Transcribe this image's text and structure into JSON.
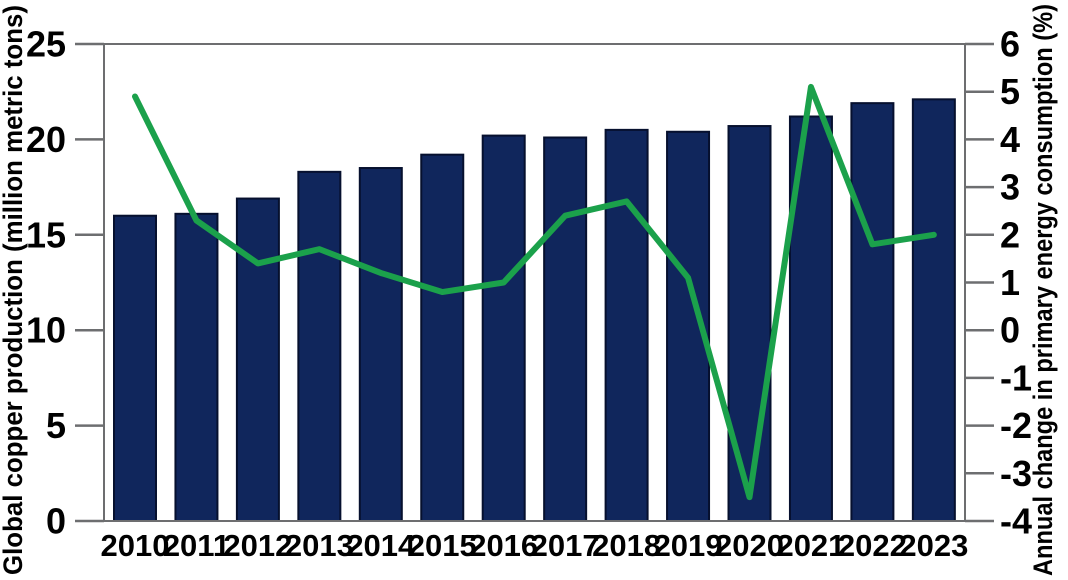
{
  "chart_data": {
    "type": "bar",
    "subtype": "combo-bar-line-dual-axis",
    "title": "",
    "categories": [
      "2010",
      "2011",
      "2012",
      "2013",
      "2014",
      "2015",
      "2016",
      "2017",
      "2018",
      "2019",
      "2020",
      "2021",
      "2022",
      "2023"
    ],
    "series": [
      {
        "name": "Global copper production",
        "type": "bar",
        "axis": "left",
        "color": "#10265c",
        "outline_color": "#06102e",
        "values": [
          16.0,
          16.1,
          16.9,
          18.3,
          18.5,
          19.2,
          20.2,
          20.1,
          20.5,
          20.4,
          20.7,
          21.2,
          21.9,
          22.1
        ]
      },
      {
        "name": "Annual change in primary energy consumption",
        "type": "line",
        "axis": "right",
        "color": "#1ba14b",
        "values": [
          4.9,
          2.3,
          1.4,
          1.7,
          1.2,
          0.8,
          1.0,
          2.4,
          2.7,
          1.1,
          -3.5,
          5.1,
          1.8,
          2.0
        ]
      }
    ],
    "left_axis": {
      "label": "Global copper production (million metric tons)",
      "min": 0,
      "max": 25,
      "ticks": [
        0,
        5,
        10,
        15,
        20,
        25
      ]
    },
    "right_axis": {
      "label": "Annual change in primary energy consumption (%)",
      "min": -4,
      "max": 6,
      "ticks": [
        -4,
        -3,
        -2,
        -1,
        0,
        1,
        2,
        3,
        4,
        5,
        6
      ]
    },
    "xlabel": "",
    "grid": false,
    "legend": "none",
    "background": "#ffffff"
  }
}
